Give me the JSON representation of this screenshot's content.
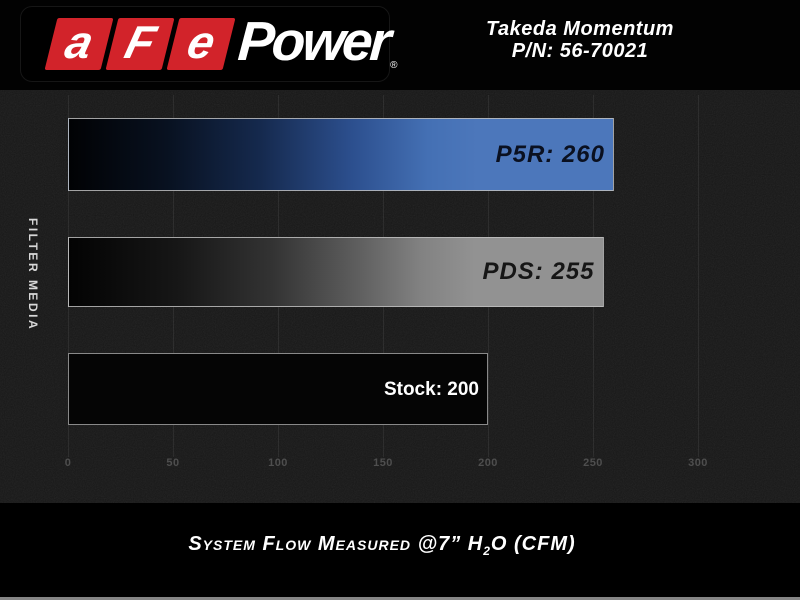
{
  "header": {
    "logo": {
      "letters": [
        "a",
        "F",
        "e"
      ],
      "suffix": "Power",
      "registered": "®"
    },
    "product_name": "Takeda Momentum",
    "part_number": "P/N: 56-70021"
  },
  "chart_data": {
    "type": "bar",
    "orientation": "horizontal",
    "categories": [
      "P5R",
      "PDS",
      "Stock"
    ],
    "values": [
      260,
      255,
      200
    ],
    "bar_labels": [
      "P5R: 260",
      "PDS: 255",
      "Stock: 200"
    ],
    "bar_styles": [
      "blue-gradient",
      "silver-gradient",
      "black"
    ],
    "ylabel": "FILTER MEDIA",
    "xlabel": "System Flow Measured @7” H2O (CFM)",
    "x_ticks": [
      "0",
      "50",
      "100",
      "150",
      "200",
      "250",
      "300"
    ],
    "xlim": [
      0,
      333
    ],
    "grid": true,
    "legend": false
  },
  "caption": {
    "pre": "System Flow Measured @7” H",
    "sub": "2",
    "post": "O (CFM)"
  },
  "colors": {
    "brand_red": "#d2232a",
    "bar_blue": "#4c77bb",
    "bar_silver": "#929292",
    "bar_black": "#050505",
    "header_bg": "#020202",
    "chart_bg": "#171717",
    "tick_text": "#4e4e4e",
    "label_on_blue": "#0a1020",
    "label_on_silver": "#161616",
    "label_on_black": "#ffffff"
  }
}
